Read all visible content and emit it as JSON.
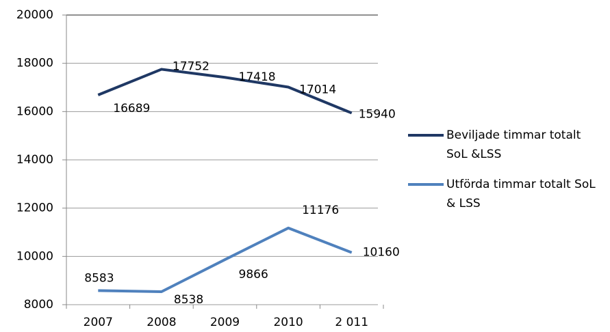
{
  "chart_data": {
    "type": "line",
    "categories": [
      "2007",
      "2008",
      "2009",
      "2010",
      "2 011"
    ],
    "series": [
      {
        "name": "Beviljade timmar totalt SoL &LSS",
        "color": "#1f3864",
        "values": [
          16689,
          17752,
          17418,
          17014,
          15940
        ]
      },
      {
        "name": "Utförda timmar totalt SoL & LSS",
        "color": "#4f81bd",
        "values": [
          8583,
          8538,
          9866,
          11176,
          10160
        ]
      }
    ],
    "ylim": [
      8000,
      20000
    ],
    "yticks": [
      8000,
      10000,
      12000,
      14000,
      16000,
      18000,
      20000
    ],
    "grid": true,
    "legend": "right"
  }
}
